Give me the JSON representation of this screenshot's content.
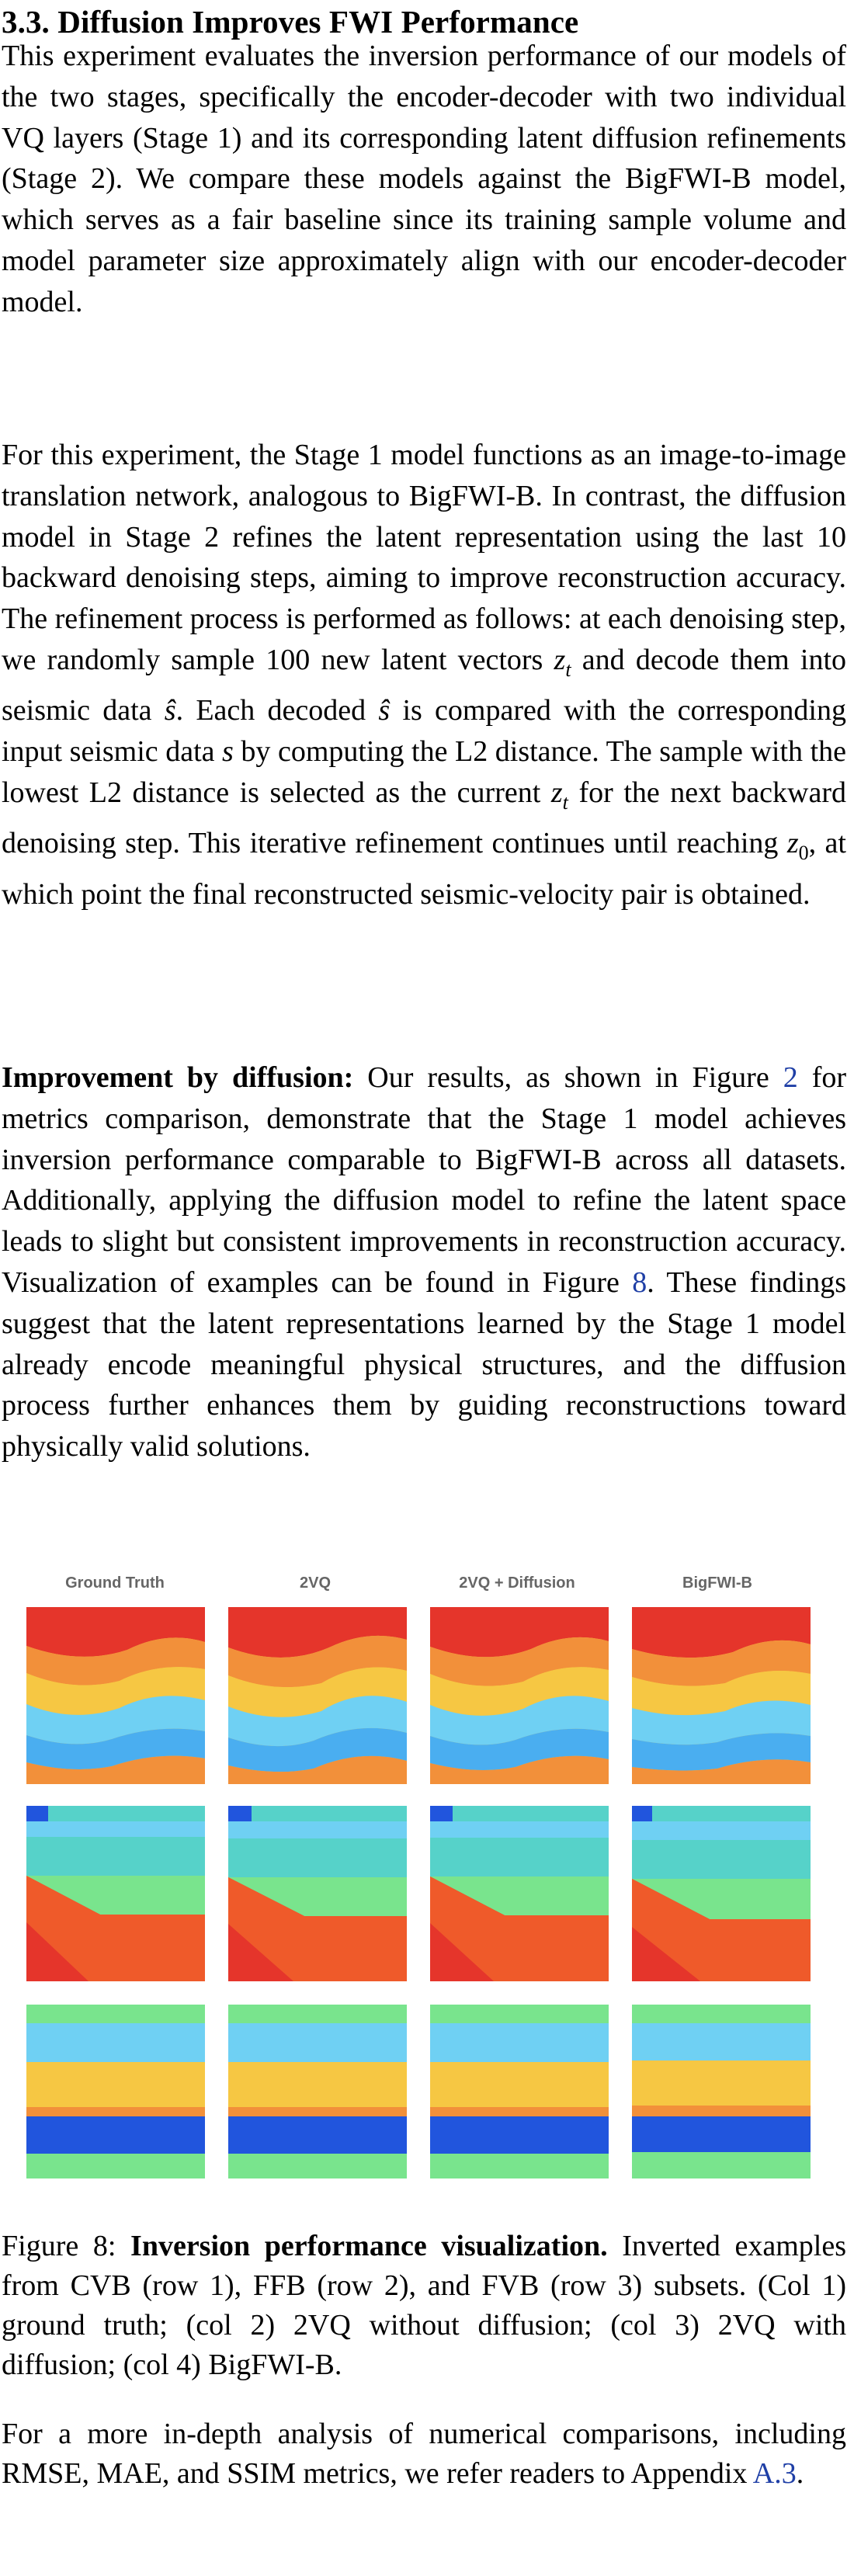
{
  "section": {
    "title": "3.3. Diffusion Improves FWI Performance"
  },
  "paragraphs": {
    "p1": "This experiment evaluates the inversion performance of our models of the two stages, specifically the encoder-decoder with two individual VQ layers (Stage 1) and its corresponding latent diffusion refinements (Stage 2). We compare these models against the BigFWI-B model, which serves as a fair baseline since its training sample volume and model parameter size approximately align with our encoder-decoder model.",
    "p2": {
      "a": "For this experiment, the Stage 1 model functions as an image-to-image translation network, analogous to BigFWI-B. In contrast, the diffusion model in Stage 2 refines the latent representation using the last 10 backward denoising steps, aiming to improve reconstruction accuracy. The refinement process is performed as follows: at each denoising step, we randomly sample 100 new latent vectors ",
      "zt1": "z",
      "zt1_sub": "t",
      "b": " and decode them into seismic data ",
      "shat1": "ŝ",
      "c": ". Each decoded ",
      "shat2": "ŝ",
      "d": " is compared with the corresponding input seismic data ",
      "s": "s",
      "e": " by computing the L2 distance. The sample with the lowest L2 distance is selected as the current ",
      "zt2": "z",
      "zt2_sub": "t",
      "f": " for the next backward denoising step. This iterative refinement continues until reaching ",
      "z0": "z",
      "z0_sub": "0",
      "g": ", at which point the final reconstructed seismic-velocity pair is obtained."
    },
    "p3": {
      "bold": "Improvement by diffusion:",
      "a": " Our results, as shown in Figure ",
      "ref1": "2",
      "b": " for metrics comparison, demonstrate that the Stage 1 model achieves inversion performance comparable to BigFWI-B across all datasets. Additionally, applying the diffusion model to refine the latent space leads to slight but consistent improvements in reconstruction accuracy. Visualization of examples can be found in Figure ",
      "ref2": "8",
      "c": ". These findings suggest that the latent representations learned by the Stage 1 model already encode meaningful physical structures, and the diffusion process further enhances them by guiding reconstructions toward physically valid solutions."
    }
  },
  "figure": {
    "col_labels": [
      "Ground Truth",
      "2VQ",
      "2VQ + Diffusion",
      "BigFWI-B"
    ],
    "caption": {
      "prefix": "Figure 8: ",
      "bold": "Inversion performance visualization.",
      "text": " Inverted examples from CVB (row 1), FFB (row 2), and FVB (row 3) subsets. (Col 1) ground truth; (col 2) 2VQ without diffusion; (col 3) 2VQ with diffusion; (col 4) BigFWI-B."
    },
    "colors": {
      "red": "#e5352b",
      "orange_red": "#ef5a2a",
      "orange": "#f2903a",
      "yellow": "#f6c743",
      "light_blue": "#6fd0f3",
      "mid_blue": "#4aaef0",
      "blue": "#2155dd",
      "green": "#79e48d",
      "teal": "#56d2c9"
    }
  },
  "final_paragraph": {
    "a": "For a more in-depth analysis of numerical comparisons, including RMSE, MAE, and SSIM metrics, we refer readers to Appendix ",
    "ref": "A.3",
    "b": "."
  }
}
